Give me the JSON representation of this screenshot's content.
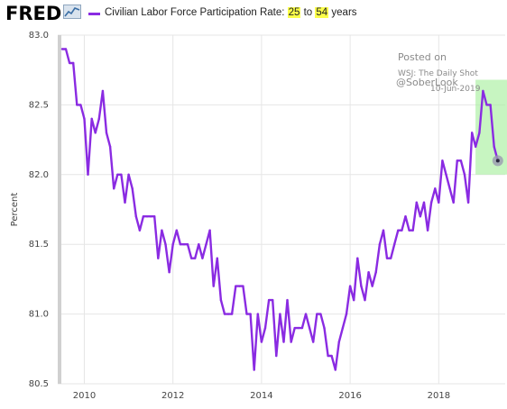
{
  "header": {
    "logo_text": "FRED",
    "legend_prefix": "Civilian Labor Force Participation Rate: ",
    "legend_highlight_1": "25",
    "legend_mid": " to ",
    "legend_highlight_2": "54",
    "legend_suffix": " years",
    "highlight_color": "#fbff4a"
  },
  "annotation": {
    "posted_on": "Posted on",
    "source": "WSJ: The Daily Shot",
    "date": "10-Jun-2019",
    "handle": "@SoberLook"
  },
  "colors": {
    "series": "#8a2be2",
    "highlight_box": "#a9f0a0",
    "grid": "#e6e6e6",
    "left_band": "#d0d0d0"
  },
  "chart_data": {
    "type": "line",
    "title": "Civilian Labor Force Participation Rate: 25 to 54 years",
    "xlabel": "",
    "ylabel": "Percent",
    "xlim": [
      2009.4,
      2019.5
    ],
    "ylim": [
      80.5,
      83.0
    ],
    "x_ticks": [
      2010,
      2012,
      2014,
      2016,
      2018
    ],
    "y_ticks": [
      80.5,
      81.0,
      81.5,
      82.0,
      82.5,
      83.0
    ],
    "x_tick_labels": [
      "2010",
      "2012",
      "2014",
      "2016",
      "2018"
    ],
    "y_tick_labels": [
      "80.5",
      "81.0",
      "81.5",
      "82.0",
      "82.5",
      "83.0"
    ],
    "grid": true,
    "legend": "top-left",
    "highlight_range": {
      "x": [
        2018.83,
        2019.5
      ],
      "y": [
        82.0,
        82.68
      ]
    },
    "series": [
      {
        "name": "Civilian Labor Force Participation Rate: 25 to 54 years",
        "x": [
          2009.5,
          2009.583,
          2009.667,
          2009.75,
          2009.833,
          2009.917,
          2010.0,
          2010.083,
          2010.167,
          2010.25,
          2010.333,
          2010.417,
          2010.5,
          2010.583,
          2010.667,
          2010.75,
          2010.833,
          2010.917,
          2011.0,
          2011.083,
          2011.167,
          2011.25,
          2011.333,
          2011.417,
          2011.5,
          2011.583,
          2011.667,
          2011.75,
          2011.833,
          2011.917,
          2012.0,
          2012.083,
          2012.167,
          2012.25,
          2012.333,
          2012.417,
          2012.5,
          2012.583,
          2012.667,
          2012.75,
          2012.833,
          2012.917,
          2013.0,
          2013.083,
          2013.167,
          2013.25,
          2013.333,
          2013.417,
          2013.5,
          2013.583,
          2013.667,
          2013.75,
          2013.833,
          2013.917,
          2014.0,
          2014.083,
          2014.167,
          2014.25,
          2014.333,
          2014.417,
          2014.5,
          2014.583,
          2014.667,
          2014.75,
          2014.833,
          2014.917,
          2015.0,
          2015.083,
          2015.167,
          2015.25,
          2015.333,
          2015.417,
          2015.5,
          2015.583,
          2015.667,
          2015.75,
          2015.833,
          2015.917,
          2016.0,
          2016.083,
          2016.167,
          2016.25,
          2016.333,
          2016.417,
          2016.5,
          2016.583,
          2016.667,
          2016.75,
          2016.833,
          2016.917,
          2017.0,
          2017.083,
          2017.167,
          2017.25,
          2017.333,
          2017.417,
          2017.5,
          2017.583,
          2017.667,
          2017.75,
          2017.833,
          2017.917,
          2018.0,
          2018.083,
          2018.167,
          2018.25,
          2018.333,
          2018.417,
          2018.5,
          2018.583,
          2018.667,
          2018.75,
          2018.833,
          2018.917,
          2019.0,
          2019.083,
          2019.167,
          2019.25,
          2019.333
        ],
        "y": [
          82.9,
          82.9,
          82.8,
          82.8,
          82.5,
          82.5,
          82.4,
          82.0,
          82.4,
          82.3,
          82.4,
          82.6,
          82.3,
          82.2,
          81.9,
          82.0,
          82.0,
          81.8,
          82.0,
          81.9,
          81.7,
          81.6,
          81.7,
          81.7,
          81.7,
          81.7,
          81.4,
          81.6,
          81.5,
          81.3,
          81.5,
          81.6,
          81.5,
          81.5,
          81.5,
          81.4,
          81.4,
          81.5,
          81.4,
          81.5,
          81.6,
          81.2,
          81.4,
          81.1,
          81.0,
          81.0,
          81.0,
          81.2,
          81.2,
          81.2,
          81.0,
          81.0,
          80.6,
          81.0,
          80.8,
          80.9,
          81.1,
          81.1,
          80.7,
          81.0,
          80.8,
          81.1,
          80.8,
          80.9,
          80.9,
          80.9,
          81.0,
          80.9,
          80.8,
          81.0,
          81.0,
          80.9,
          80.7,
          80.7,
          80.6,
          80.8,
          80.9,
          81.0,
          81.2,
          81.1,
          81.4,
          81.2,
          81.1,
          81.3,
          81.2,
          81.3,
          81.5,
          81.6,
          81.4,
          81.4,
          81.5,
          81.6,
          81.6,
          81.7,
          81.6,
          81.6,
          81.8,
          81.7,
          81.8,
          81.6,
          81.8,
          81.9,
          81.8,
          82.1,
          82.0,
          81.9,
          81.8,
          82.1,
          82.1,
          82.0,
          81.8,
          82.3,
          82.2,
          82.3,
          82.6,
          82.5,
          82.5,
          82.2,
          82.1
        ]
      }
    ]
  }
}
